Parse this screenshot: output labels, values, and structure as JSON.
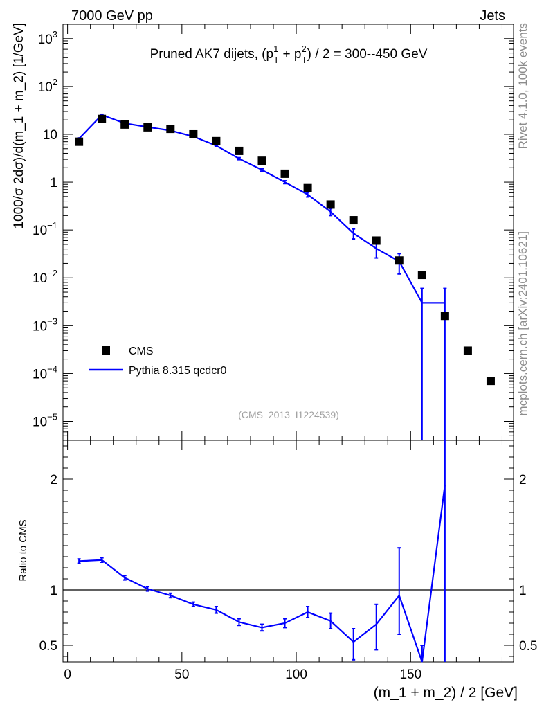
{
  "header": {
    "left": "7000 GeV pp",
    "right": "Jets"
  },
  "title_main": "Pruned AK7 dijets, (p",
  "title_sup1": "1",
  "title_sub1": "T",
  "title_plus": " + p",
  "title_sup2": "2",
  "title_sub2": "T",
  "title_tail": ") / 2 = 300--450 GeV",
  "ylabel_main": "1000/σ  2dσ)/d(m_1 + m_2) [1/GeV]",
  "ylabel_ratio": "Ratio to CMS",
  "xlabel": "(m_1 + m_2) / 2 [GeV]",
  "analysis_id": "(CMS_2013_I1224539)",
  "side_text_top": "Rivet 4.1.0,  100k events",
  "side_text_bottom": "mcplots.cern.ch [arXiv:2401.10621]",
  "legend": [
    {
      "label": "CMS",
      "marker": "square",
      "color": "#000000"
    },
    {
      "label": "Pythia 8.315 qcdcr0",
      "marker": "line",
      "color": "#0000ff"
    }
  ],
  "chart_data": [
    {
      "type": "scatter",
      "title": "Pruned AK7 dijets, (p_T^1 + p_T^2) / 2 = 300--450 GeV",
      "xlabel": "",
      "ylabel": "1000/σ  2dσ)/d(m_1 + m_2) [1/GeV]",
      "xlim": [
        -2,
        195
      ],
      "ylim": [
        4e-06,
        2000
      ],
      "yscale": "log",
      "x_ticks": [
        0,
        50,
        100,
        150
      ],
      "y_ticks": [
        "10^-5",
        "10^-4",
        "10^-3",
        "10^-2",
        "10^-1",
        "1",
        "10",
        "10^2",
        "10^3"
      ],
      "series": [
        {
          "name": "CMS",
          "color": "#000000",
          "x": [
            5,
            15,
            25,
            35,
            45,
            55,
            65,
            75,
            85,
            95,
            105,
            115,
            125,
            135,
            145,
            155,
            165,
            175,
            185
          ],
          "y": [
            7.0,
            21.0,
            16.0,
            14.0,
            13.0,
            10.0,
            7.2,
            4.5,
            2.8,
            1.5,
            0.75,
            0.34,
            0.16,
            0.06,
            0.023,
            0.0115,
            0.0016,
            0.0003,
            7e-05
          ]
        },
        {
          "name": "Pythia 8.315 qcdcr0",
          "color": "#0000ff",
          "x": [
            5,
            15,
            25,
            35,
            45,
            55,
            65,
            75,
            85,
            95,
            105,
            115,
            125,
            135,
            145,
            155,
            165
          ],
          "y": [
            8.1,
            25.5,
            17.0,
            14.2,
            12.0,
            9.0,
            5.8,
            3.1,
            1.8,
            1.0,
            0.55,
            0.24,
            0.085,
            0.041,
            0.022,
            0.003,
            0.003
          ],
          "yerr_low": [
            0.3,
            0.8,
            0.5,
            0.4,
            0.3,
            0.3,
            0.2,
            0.15,
            0.1,
            0.07,
            0.06,
            0.04,
            0.02,
            0.015,
            0.01,
            0.003,
            0.003
          ],
          "yerr_high": [
            0.3,
            0.8,
            0.5,
            0.4,
            0.3,
            0.3,
            0.2,
            0.15,
            0.1,
            0.07,
            0.06,
            0.04,
            0.02,
            0.015,
            0.01,
            0.003,
            0.003
          ]
        }
      ]
    },
    {
      "type": "line",
      "xlabel": "(m_1 + m_2) / 2 [GeV]",
      "ylabel": "Ratio to CMS",
      "xlim": [
        -2,
        195
      ],
      "ylim": [
        0.35,
        2.35
      ],
      "x_ticks": [
        0,
        50,
        100,
        150
      ],
      "y_ticks": [
        0.5,
        1,
        2
      ],
      "reference_line": 1,
      "series": [
        {
          "name": "Pythia 8.315 qcdcr0",
          "color": "#0000ff",
          "x": [
            5,
            15,
            25,
            35,
            45,
            55,
            65,
            75,
            85,
            95,
            105,
            115,
            125,
            135,
            145,
            155,
            165
          ],
          "y": [
            1.26,
            1.27,
            1.11,
            1.01,
            0.95,
            0.87,
            0.82,
            0.71,
            0.66,
            0.7,
            0.8,
            0.72,
            0.53,
            0.69,
            0.95,
            0.25,
            1.95
          ],
          "yerr_low": [
            0.02,
            0.02,
            0.02,
            0.02,
            0.02,
            0.02,
            0.03,
            0.03,
            0.03,
            0.04,
            0.05,
            0.07,
            0.16,
            0.23,
            0.35,
            0.25,
            1.95
          ],
          "yerr_high": [
            0.02,
            0.02,
            0.02,
            0.02,
            0.02,
            0.02,
            0.03,
            0.03,
            0.03,
            0.04,
            0.05,
            0.07,
            0.12,
            0.18,
            0.43,
            0.25,
            1.0
          ]
        }
      ]
    }
  ]
}
